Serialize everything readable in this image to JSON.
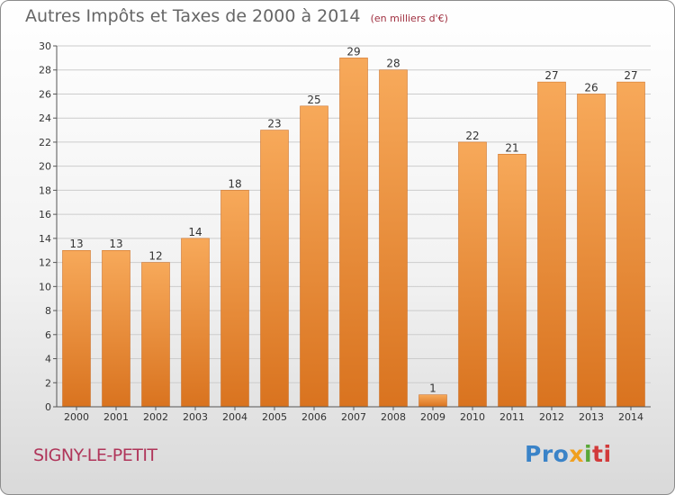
{
  "header": {
    "title": "Autres Impôts et Taxes de 2000 à 2014",
    "unit": "(en milliers d'€)"
  },
  "location": {
    "name": "SIGNY-LE-PETIT"
  },
  "brand": {
    "name": "Proxiti"
  },
  "colors": {
    "bar_light": "#f7a95a",
    "bar_dark": "#d9731f",
    "grid": "#cccccc",
    "title": "#666666",
    "town": "#b0355a"
  },
  "chart_data": {
    "type": "bar",
    "title": "Autres Impôts et Taxes de 2000 à 2014",
    "subtitle": "(en milliers d'€)",
    "xlabel": "",
    "ylabel": "",
    "categories": [
      "2000",
      "2001",
      "2002",
      "2003",
      "2004",
      "2005",
      "2006",
      "2007",
      "2008",
      "2009",
      "2010",
      "2011",
      "2012",
      "2013",
      "2014"
    ],
    "values": [
      13,
      13,
      12,
      14,
      18,
      23,
      25,
      29,
      28,
      1,
      22,
      21,
      27,
      26,
      27
    ],
    "ylim": [
      0,
      30
    ],
    "yticks": [
      0,
      2,
      4,
      6,
      8,
      10,
      12,
      14,
      16,
      18,
      20,
      22,
      24,
      26,
      28,
      30
    ],
    "grid": true,
    "legend": "none"
  }
}
